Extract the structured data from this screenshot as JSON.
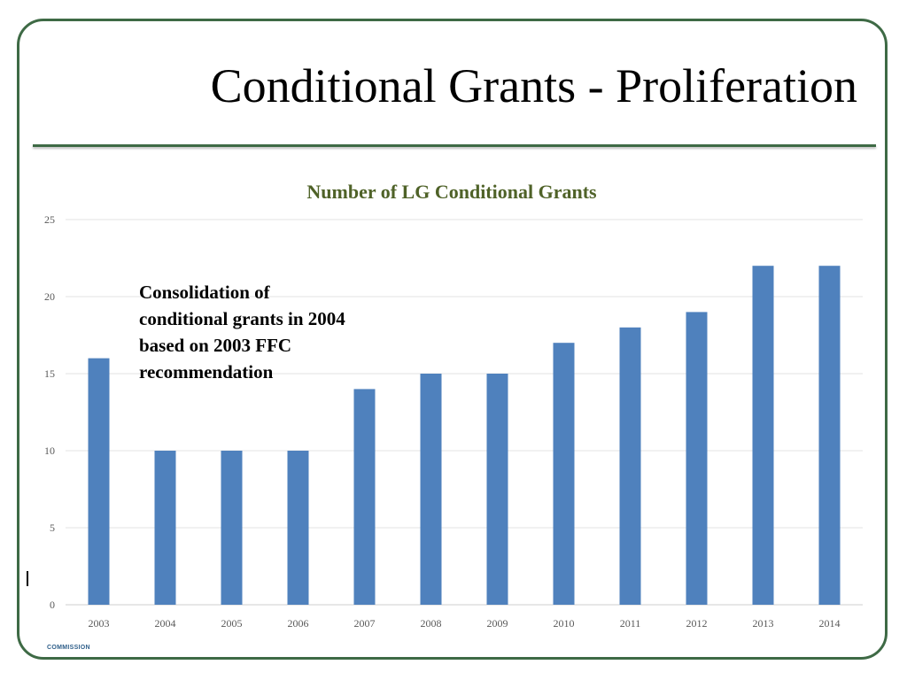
{
  "slide": {
    "title": "Conditional Grants - Proliferation",
    "footer": "COMMISSION"
  },
  "colors": {
    "frame": "#3e6a45",
    "bar": "#4f81bd",
    "chart_title": "#4f6228",
    "grid": "#e3e3e3"
  },
  "annotation": {
    "text": "Consolidation of conditional grants in 2004 based on 2003 FFC recommendation"
  },
  "chart_data": {
    "type": "bar",
    "title": "Number of LG Conditional Grants",
    "xlabel": "",
    "ylabel": "",
    "categories": [
      "2003",
      "2004",
      "2005",
      "2006",
      "2007",
      "2008",
      "2009",
      "2010",
      "2011",
      "2012",
      "2013",
      "2014"
    ],
    "values": [
      16,
      10,
      10,
      10,
      14,
      15,
      15,
      17,
      18,
      19,
      22,
      22
    ],
    "ylim": [
      0,
      25
    ],
    "yticks": [
      0,
      5,
      10,
      15,
      20,
      25
    ],
    "grid": true,
    "legend": "none"
  }
}
